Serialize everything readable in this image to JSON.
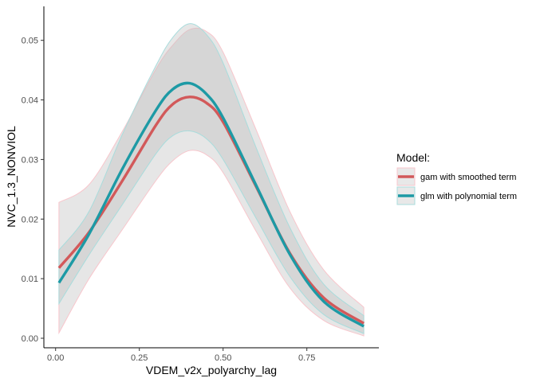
{
  "chart_data": {
    "type": "line",
    "xlabel": "VDEM_v2x_polyarchy_lag",
    "ylabel": "NVC_1.3_NONVIOL",
    "xlim": [
      -0.035,
      0.965
    ],
    "ylim": [
      -0.0016,
      0.0557
    ],
    "x_ticks": [
      0.0,
      0.25,
      0.5,
      0.75
    ],
    "x_tick_labels": [
      "0.00",
      "0.25",
      "0.50",
      "0.75"
    ],
    "y_ticks": [
      0.0,
      0.01,
      0.02,
      0.03,
      0.04,
      0.05
    ],
    "y_tick_labels": [
      "0.00",
      "0.01",
      "0.02",
      "0.03",
      "0.04",
      "0.05"
    ],
    "grid": false,
    "legend_title": "Model:",
    "legend_position": "right",
    "x": [
      0.01,
      0.1,
      0.2,
      0.3,
      0.35,
      0.4,
      0.45,
      0.5,
      0.6,
      0.7,
      0.8,
      0.92
    ],
    "series": [
      {
        "name": "gam with smoothed term",
        "color": "#D2595A",
        "band_color": "#F8C6CC",
        "values": [
          0.0118,
          0.0178,
          0.0265,
          0.0358,
          0.0393,
          0.0405,
          0.0395,
          0.0363,
          0.0253,
          0.0142,
          0.0068,
          0.0025
        ],
        "lower": [
          0.0009,
          0.01,
          0.0183,
          0.0265,
          0.0298,
          0.0315,
          0.0308,
          0.0278,
          0.0178,
          0.0084,
          0.003,
          0.0004
        ],
        "upper": [
          0.0228,
          0.0258,
          0.0348,
          0.0452,
          0.0492,
          0.0518,
          0.0515,
          0.048,
          0.0348,
          0.0212,
          0.0115,
          0.0052
        ]
      },
      {
        "name": "glm with polynomial term",
        "color": "#1D9AA5",
        "band_color": "#A9DCDC",
        "values": [
          0.0093,
          0.0175,
          0.0285,
          0.0383,
          0.0418,
          0.0428,
          0.041,
          0.037,
          0.0255,
          0.014,
          0.0062,
          0.002
        ],
        "lower": [
          0.0058,
          0.014,
          0.0225,
          0.031,
          0.034,
          0.0348,
          0.0335,
          0.03,
          0.02,
          0.0103,
          0.004,
          0.0008
        ],
        "upper": [
          0.0148,
          0.0213,
          0.0343,
          0.0458,
          0.0505,
          0.0528,
          0.051,
          0.0462,
          0.0318,
          0.0185,
          0.0091,
          0.0038
        ]
      }
    ]
  }
}
